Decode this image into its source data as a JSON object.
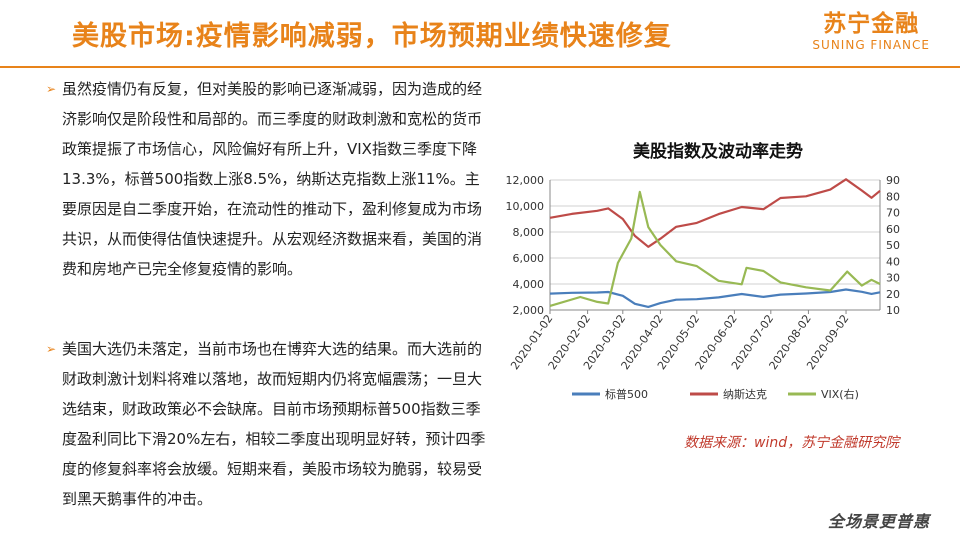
{
  "header": {
    "title": "美股市场:疫情影响减弱，市场预期业绩快速修复",
    "logo_cn": "苏宁金融",
    "logo_en": "SUNING FINANCE"
  },
  "paragraphs": [
    "虽然疫情仍有反复，但对美股的影响已逐渐减弱，因为造成的经济影响仅是阶段性和局部的。而三季度的财政刺激和宽松的货币政策提振了市场信心，风险偏好有所上升，VIX指数三季度下降13.3%，标普500指数上涨8.5%，纳斯达克指数上涨11%。主要原因是自二季度开始，在流动性的推动下，盈利修复成为市场共识，从而使得估值快速提升。从宏观经济数据来看，美国的消费和房地产已完全修复疫情的影响。",
    "美国大选仍未落定，当前市场也在博弈大选的结果。而大选前的财政刺激计划料将难以落地，故而短期内仍将宽幅震荡；一旦大选结束，财政政策必不会缺席。目前市场预期标普500指数三季度盈利同比下滑20%左右，相较二季度出现明显好转，预计四季度的修复斜率将会放缓。短期来看，美股市场较为脆弱，较易受到黑天鹅事件的冲击。"
  ],
  "chart_data": {
    "type": "line",
    "title": "美股指数及波动率走势",
    "x_ticks": [
      "2020-01-02",
      "2020-02-02",
      "2020-03-02",
      "2020-04-02",
      "2020-05-02",
      "2020-06-02",
      "2020-07-02",
      "2020-08-02",
      "2020-09-02"
    ],
    "x_range": [
      "2020-01-02",
      "2020-09-30"
    ],
    "y_left": {
      "min": 2000,
      "max": 12000,
      "ticks": [
        "2,000",
        "4,000",
        "6,000",
        "8,000",
        "10,000",
        "12,000"
      ]
    },
    "y_right": {
      "min": 10,
      "max": 90,
      "ticks": [
        "10",
        "20",
        "30",
        "40",
        "50",
        "60",
        "70",
        "80",
        "90"
      ]
    },
    "grid": true,
    "legend_position": "bottom",
    "series": [
      {
        "name": "标普500",
        "axis": "left",
        "color": "#4a7ebb",
        "points": [
          [
            "2020-01-02",
            3258
          ],
          [
            "2020-01-20",
            3320
          ],
          [
            "2020-02-10",
            3350
          ],
          [
            "2020-02-19",
            3386
          ],
          [
            "2020-03-02",
            3090
          ],
          [
            "2020-03-12",
            2480
          ],
          [
            "2020-03-23",
            2237
          ],
          [
            "2020-04-02",
            2527
          ],
          [
            "2020-04-15",
            2790
          ],
          [
            "2020-05-02",
            2830
          ],
          [
            "2020-05-20",
            2970
          ],
          [
            "2020-06-08",
            3232
          ],
          [
            "2020-06-26",
            3009
          ],
          [
            "2020-07-10",
            3185
          ],
          [
            "2020-07-31",
            3271
          ],
          [
            "2020-08-20",
            3385
          ],
          [
            "2020-09-02",
            3580
          ],
          [
            "2020-09-15",
            3401
          ],
          [
            "2020-09-23",
            3237
          ],
          [
            "2020-09-30",
            3363
          ]
        ]
      },
      {
        "name": "纳斯达克",
        "axis": "left",
        "color": "#be4b48",
        "points": [
          [
            "2020-01-02",
            9093
          ],
          [
            "2020-01-20",
            9390
          ],
          [
            "2020-02-10",
            9628
          ],
          [
            "2020-02-19",
            9817
          ],
          [
            "2020-03-02",
            9000
          ],
          [
            "2020-03-12",
            7700
          ],
          [
            "2020-03-23",
            6860
          ],
          [
            "2020-04-02",
            7487
          ],
          [
            "2020-04-15",
            8400
          ],
          [
            "2020-05-02",
            8700
          ],
          [
            "2020-05-20",
            9375
          ],
          [
            "2020-06-08",
            9924
          ],
          [
            "2020-06-26",
            9757
          ],
          [
            "2020-07-10",
            10617
          ],
          [
            "2020-07-31",
            10745
          ],
          [
            "2020-08-20",
            11264
          ],
          [
            "2020-09-02",
            12056
          ],
          [
            "2020-09-15",
            11190
          ],
          [
            "2020-09-23",
            10632
          ],
          [
            "2020-09-30",
            11168
          ]
        ]
      },
      {
        "name": "VIX(右)",
        "axis": "right",
        "color": "#98b954",
        "points": [
          [
            "2020-01-02",
            12.5
          ],
          [
            "2020-01-27",
            18
          ],
          [
            "2020-02-10",
            15
          ],
          [
            "2020-02-19",
            14
          ],
          [
            "2020-02-27",
            39
          ],
          [
            "2020-03-09",
            54
          ],
          [
            "2020-03-16",
            82.7
          ],
          [
            "2020-03-23",
            61
          ],
          [
            "2020-04-02",
            50
          ],
          [
            "2020-04-15",
            40
          ],
          [
            "2020-05-02",
            37
          ],
          [
            "2020-05-20",
            28
          ],
          [
            "2020-06-08",
            25.8
          ],
          [
            "2020-06-12",
            36
          ],
          [
            "2020-06-26",
            34
          ],
          [
            "2020-07-10",
            27
          ],
          [
            "2020-07-31",
            24
          ],
          [
            "2020-08-20",
            22
          ],
          [
            "2020-09-03",
            33.6
          ],
          [
            "2020-09-15",
            25
          ],
          [
            "2020-09-23",
            28.6
          ],
          [
            "2020-09-30",
            26
          ]
        ]
      }
    ]
  },
  "source_note": "数据来源：wind，苏宁金融研究院",
  "footer_logo": "全场景更普惠"
}
